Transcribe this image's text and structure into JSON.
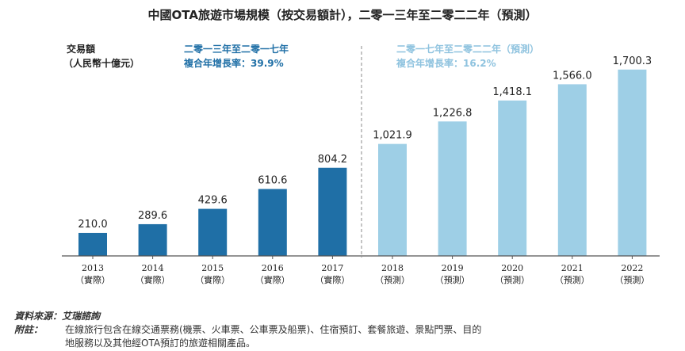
{
  "chart_data": {
    "type": "bar",
    "title": "中國OTA旅遊市場規模（按交易額計），二零一三年至二零二二年（預測）",
    "ylabel_line1": "交易額",
    "ylabel_line2": "（人民幣十億元）",
    "categories": [
      "2013",
      "2014",
      "2015",
      "2016",
      "2017",
      "2018",
      "2019",
      "2020",
      "2021",
      "2022"
    ],
    "sublabels": [
      "（實際）",
      "（實際）",
      "（實際）",
      "（實際）",
      "（實際）",
      "（預測）",
      "（預測）",
      "（預測）",
      "（預測）",
      "（預測）"
    ],
    "values": [
      210.0,
      289.6,
      429.6,
      610.6,
      804.2,
      1021.9,
      1226.8,
      1418.1,
      1566.0,
      1700.3
    ],
    "value_labels": [
      "210.0",
      "289.6",
      "429.6",
      "610.6",
      "804.2",
      "1,021.9",
      "1,226.8",
      "1,418.1",
      "1,566.0",
      "1,700.3"
    ],
    "ylim": [
      0,
      1800
    ],
    "grid": false,
    "annotations": {
      "actual_period": "二零一三年至二零一七年",
      "actual_cagr": "複合年增長率：39.9%",
      "forecast_period": "二零一七年至二零二二年（預測）",
      "forecast_cagr": "複合年增長率：16.2%"
    },
    "colors": {
      "actual": "#1f6fa6",
      "forecast": "#9ecfe6",
      "axis": "#555555"
    }
  },
  "footer": {
    "source": "資料來源：艾瑞諮詢",
    "note_label": "附註：",
    "note_line1": "在線旅行包含在線交通票務(機票、火車票、公車票及船票)、住宿預訂、套餐旅遊、景點門票、目的",
    "note_line2": "地服務以及其他經OTA預訂的旅遊相關產品。"
  }
}
